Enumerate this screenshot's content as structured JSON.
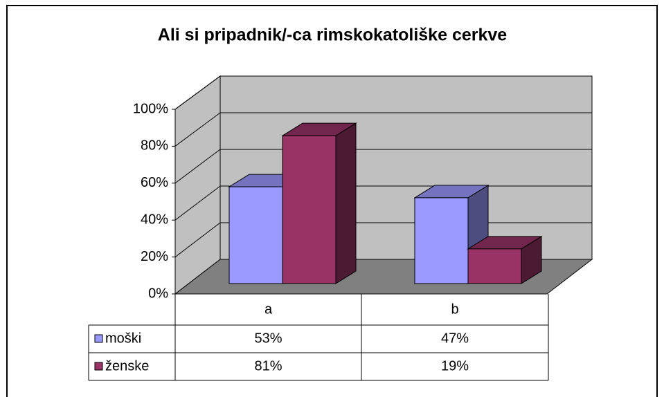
{
  "chart_data": {
    "type": "bar3d",
    "title": "Ali si pripadnik/-ca rimskokatoliške cerkve",
    "categories": [
      "a",
      "b"
    ],
    "series": [
      {
        "name": "moški",
        "color": "#9999ff",
        "values": [
          53,
          47
        ],
        "value_labels": [
          "53%",
          "47%"
        ]
      },
      {
        "name": "ženske",
        "color": "#993366",
        "values": [
          81,
          19
        ],
        "value_labels": [
          "81%",
          "19%"
        ]
      }
    ],
    "ylim": [
      0,
      100
    ],
    "yticks": [
      {
        "value": 0,
        "label": "0%"
      },
      {
        "value": 20,
        "label": "20%"
      },
      {
        "value": 40,
        "label": "40%"
      },
      {
        "value": 60,
        "label": "60%"
      },
      {
        "value": 80,
        "label": "80%"
      },
      {
        "value": 100,
        "label": "100%"
      }
    ],
    "grid": true
  }
}
